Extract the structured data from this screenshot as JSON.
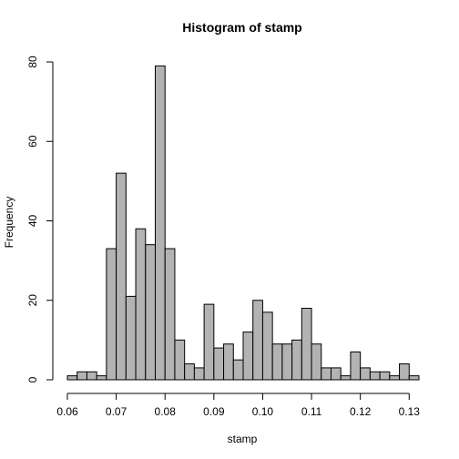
{
  "chart_data": {
    "type": "bar",
    "title": "Histogram of stamp",
    "xlabel": "stamp",
    "ylabel": "Frequency",
    "bar_color": "#b3b3b3",
    "bar_border": "#000000",
    "bin_width": 0.002,
    "x_start": 0.06,
    "xlim": [
      0.06,
      0.132
    ],
    "ylim": [
      0,
      80
    ],
    "x_ticks": [
      "0.06",
      "0.07",
      "0.08",
      "0.09",
      "0.10",
      "0.11",
      "0.12",
      "0.13"
    ],
    "y_ticks": [
      "0",
      "20",
      "40",
      "60",
      "80"
    ],
    "values": [
      1,
      2,
      2,
      1,
      33,
      52,
      21,
      38,
      34,
      79,
      33,
      10,
      4,
      3,
      19,
      8,
      9,
      5,
      12,
      20,
      17,
      9,
      9,
      10,
      18,
      9,
      3,
      3,
      1,
      7,
      3,
      2,
      2,
      1,
      4,
      1
    ],
    "grid": false,
    "legend": "none"
  }
}
